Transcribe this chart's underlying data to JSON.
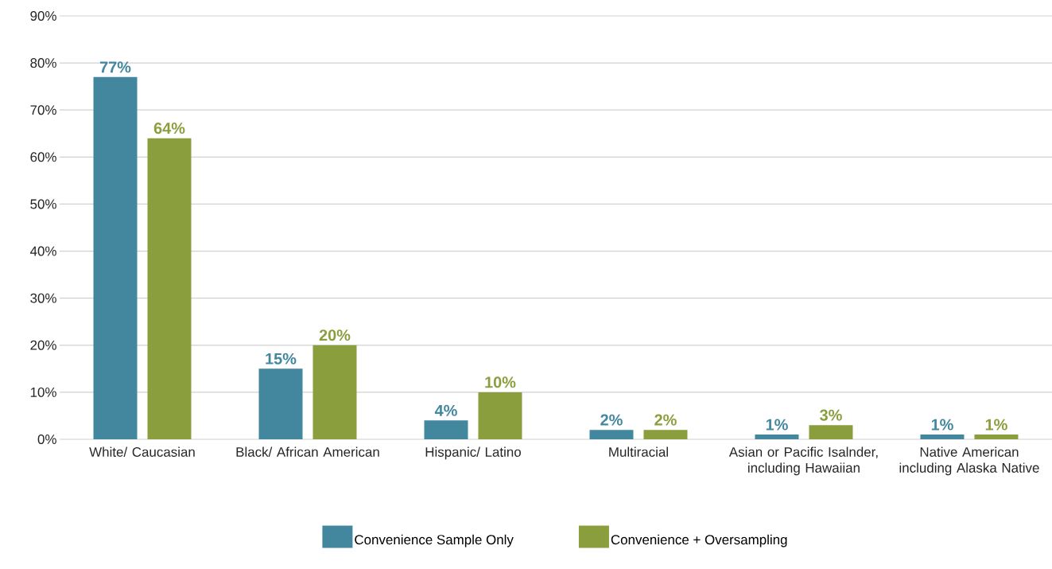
{
  "chart_data": {
    "type": "bar",
    "categories": [
      "White/ Caucasian",
      "Black/ African American",
      "Hispanic/ Latino",
      "Multiracial",
      "Asian or Pacific Isalnder, including Hawaiian",
      "Native American including Alaska Native"
    ],
    "series": [
      {
        "name": "Convenience Sample Only",
        "color": "#43879f",
        "values": [
          77,
          15,
          4,
          2,
          1,
          1
        ],
        "value_labels": [
          "77%",
          "15%",
          "4%",
          "2%",
          "1%",
          "1%"
        ]
      },
      {
        "name": "Convenience + Oversampling",
        "color": "#8a9e3e",
        "values": [
          64,
          20,
          10,
          2,
          3,
          1
        ],
        "value_labels": [
          "64%",
          "20%",
          "10%",
          "2%",
          "3%",
          "1%"
        ]
      }
    ],
    "ylim": [
      0,
      90
    ],
    "yticks": [
      {
        "value": 0,
        "label": "0%"
      },
      {
        "value": 10,
        "label": "10%"
      },
      {
        "value": 20,
        "label": "20%"
      },
      {
        "value": 30,
        "label": "30%"
      },
      {
        "value": 40,
        "label": "40%"
      },
      {
        "value": 50,
        "label": "50%"
      },
      {
        "value": 60,
        "label": "60%"
      },
      {
        "value": 70,
        "label": "70%"
      },
      {
        "value": 80,
        "label": "80%"
      },
      {
        "value": 90,
        "label": "90%"
      }
    ],
    "grid": "y",
    "legend": "bottom"
  }
}
